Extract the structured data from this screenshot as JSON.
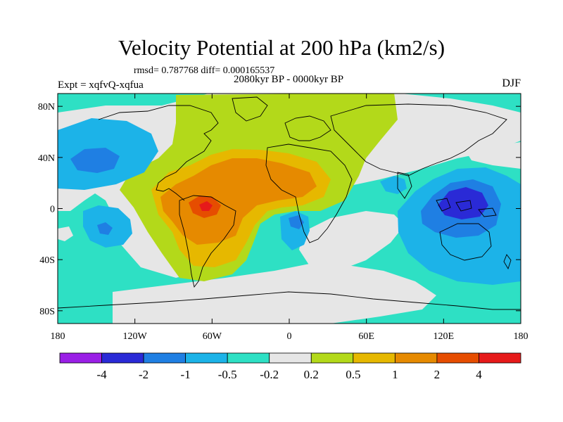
{
  "figure": {
    "title": "Velocity Potential at 200 hPa (km2/s)",
    "stats": "rmsd= 0.787768 diff= 0.000165537",
    "subtitle": "2080kyr BP - 0000kyr BP",
    "experiment": "Expt = xqfvQ-xqfua",
    "season": "DJF"
  },
  "chart_data": {
    "type": "heatmap",
    "title": "Velocity Potential at 200 hPa (km2/s)",
    "variable": "velocity potential difference",
    "units": "km2/s",
    "projection": "cylindrical equidistant",
    "x": {
      "range": [
        -180,
        180
      ],
      "ticks": [
        -180,
        -120,
        -60,
        0,
        60,
        120,
        180
      ],
      "tick_labels": [
        "180",
        "120W",
        "60W",
        "0",
        "60E",
        "120E",
        "180"
      ]
    },
    "y": {
      "range": [
        -90,
        90
      ],
      "ticks": [
        80,
        40,
        0,
        -40,
        -80
      ],
      "tick_labels": [
        "80N",
        "40N",
        "0",
        "40S",
        "80S"
      ]
    },
    "colorbar": {
      "labels": [
        "-4",
        "-2",
        "-1",
        "-0.5",
        "-0.2",
        "0.2",
        "0.5",
        "1",
        "2",
        "4"
      ],
      "colors": [
        "#9a1fe6",
        "#2a2ad6",
        "#1f7fe3",
        "#1cb3e8",
        "#2ee0c4",
        "#e6e6e6",
        "#b3d91a",
        "#e6b800",
        "#e68a00",
        "#e64d00",
        "#e61a1a"
      ]
    },
    "features": [
      {
        "name": "positive-centre-south-america",
        "lon": -65,
        "lat": 0,
        "value": 4
      },
      {
        "name": "positive-belt-atlantic-africa",
        "lon": -20,
        "lat": 25,
        "value": 2
      },
      {
        "name": "negative-centre-maritime-continent",
        "lon": 140,
        "lat": 5,
        "value": -4
      },
      {
        "name": "negative-north-pacific",
        "lon": -150,
        "lat": 35,
        "value": -1
      },
      {
        "name": "negative-south-pacific",
        "lon": -135,
        "lat": -18,
        "value": -2
      },
      {
        "name": "negative-south-atlantic",
        "lon": 5,
        "lat": -15,
        "value": -1
      }
    ]
  }
}
